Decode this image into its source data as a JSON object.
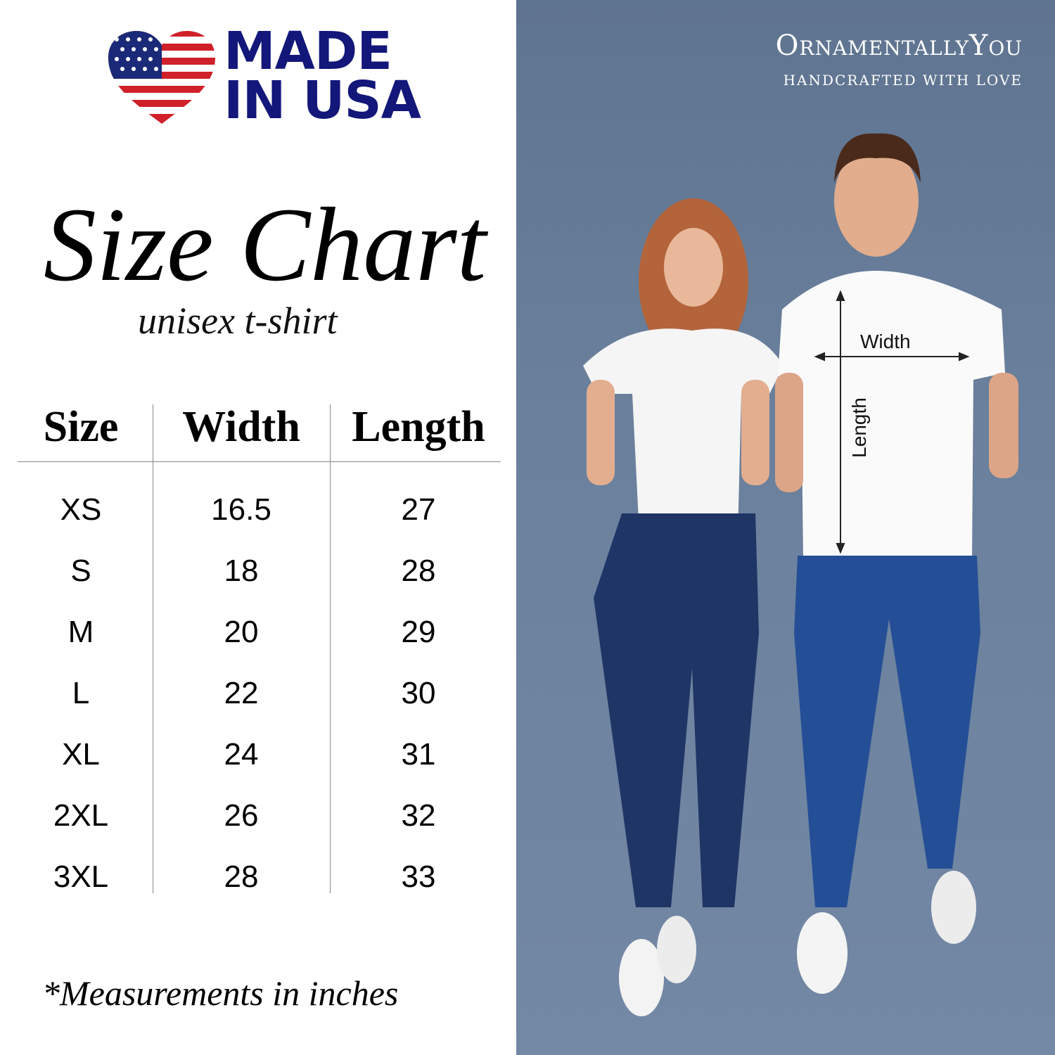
{
  "badge": {
    "line1": "MADE",
    "line2": "IN USA"
  },
  "title": "Size Chart",
  "subtitle": "unisex t-shirt",
  "table": {
    "headers": [
      "Size",
      "Width",
      "Length"
    ],
    "rows": [
      [
        "XS",
        "16.5",
        "27"
      ],
      [
        "S",
        "18",
        "28"
      ],
      [
        "M",
        "20",
        "29"
      ],
      [
        "L",
        "22",
        "30"
      ],
      [
        "XL",
        "24",
        "31"
      ],
      [
        "2XL",
        "26",
        "32"
      ],
      [
        "3XL",
        "28",
        "33"
      ]
    ]
  },
  "note": "*Measurements in inches",
  "brand": {
    "name": "OrnamentallyYou",
    "tagline": "HANDCRAFTED WITH LOVE"
  },
  "diagram": {
    "width_label": "Width",
    "length_label": "Length"
  },
  "colors": {
    "badge_text": "#13177a",
    "flag_red": "#d0202a",
    "flag_blue": "#1b2a78",
    "background_photo": "#667c98"
  }
}
